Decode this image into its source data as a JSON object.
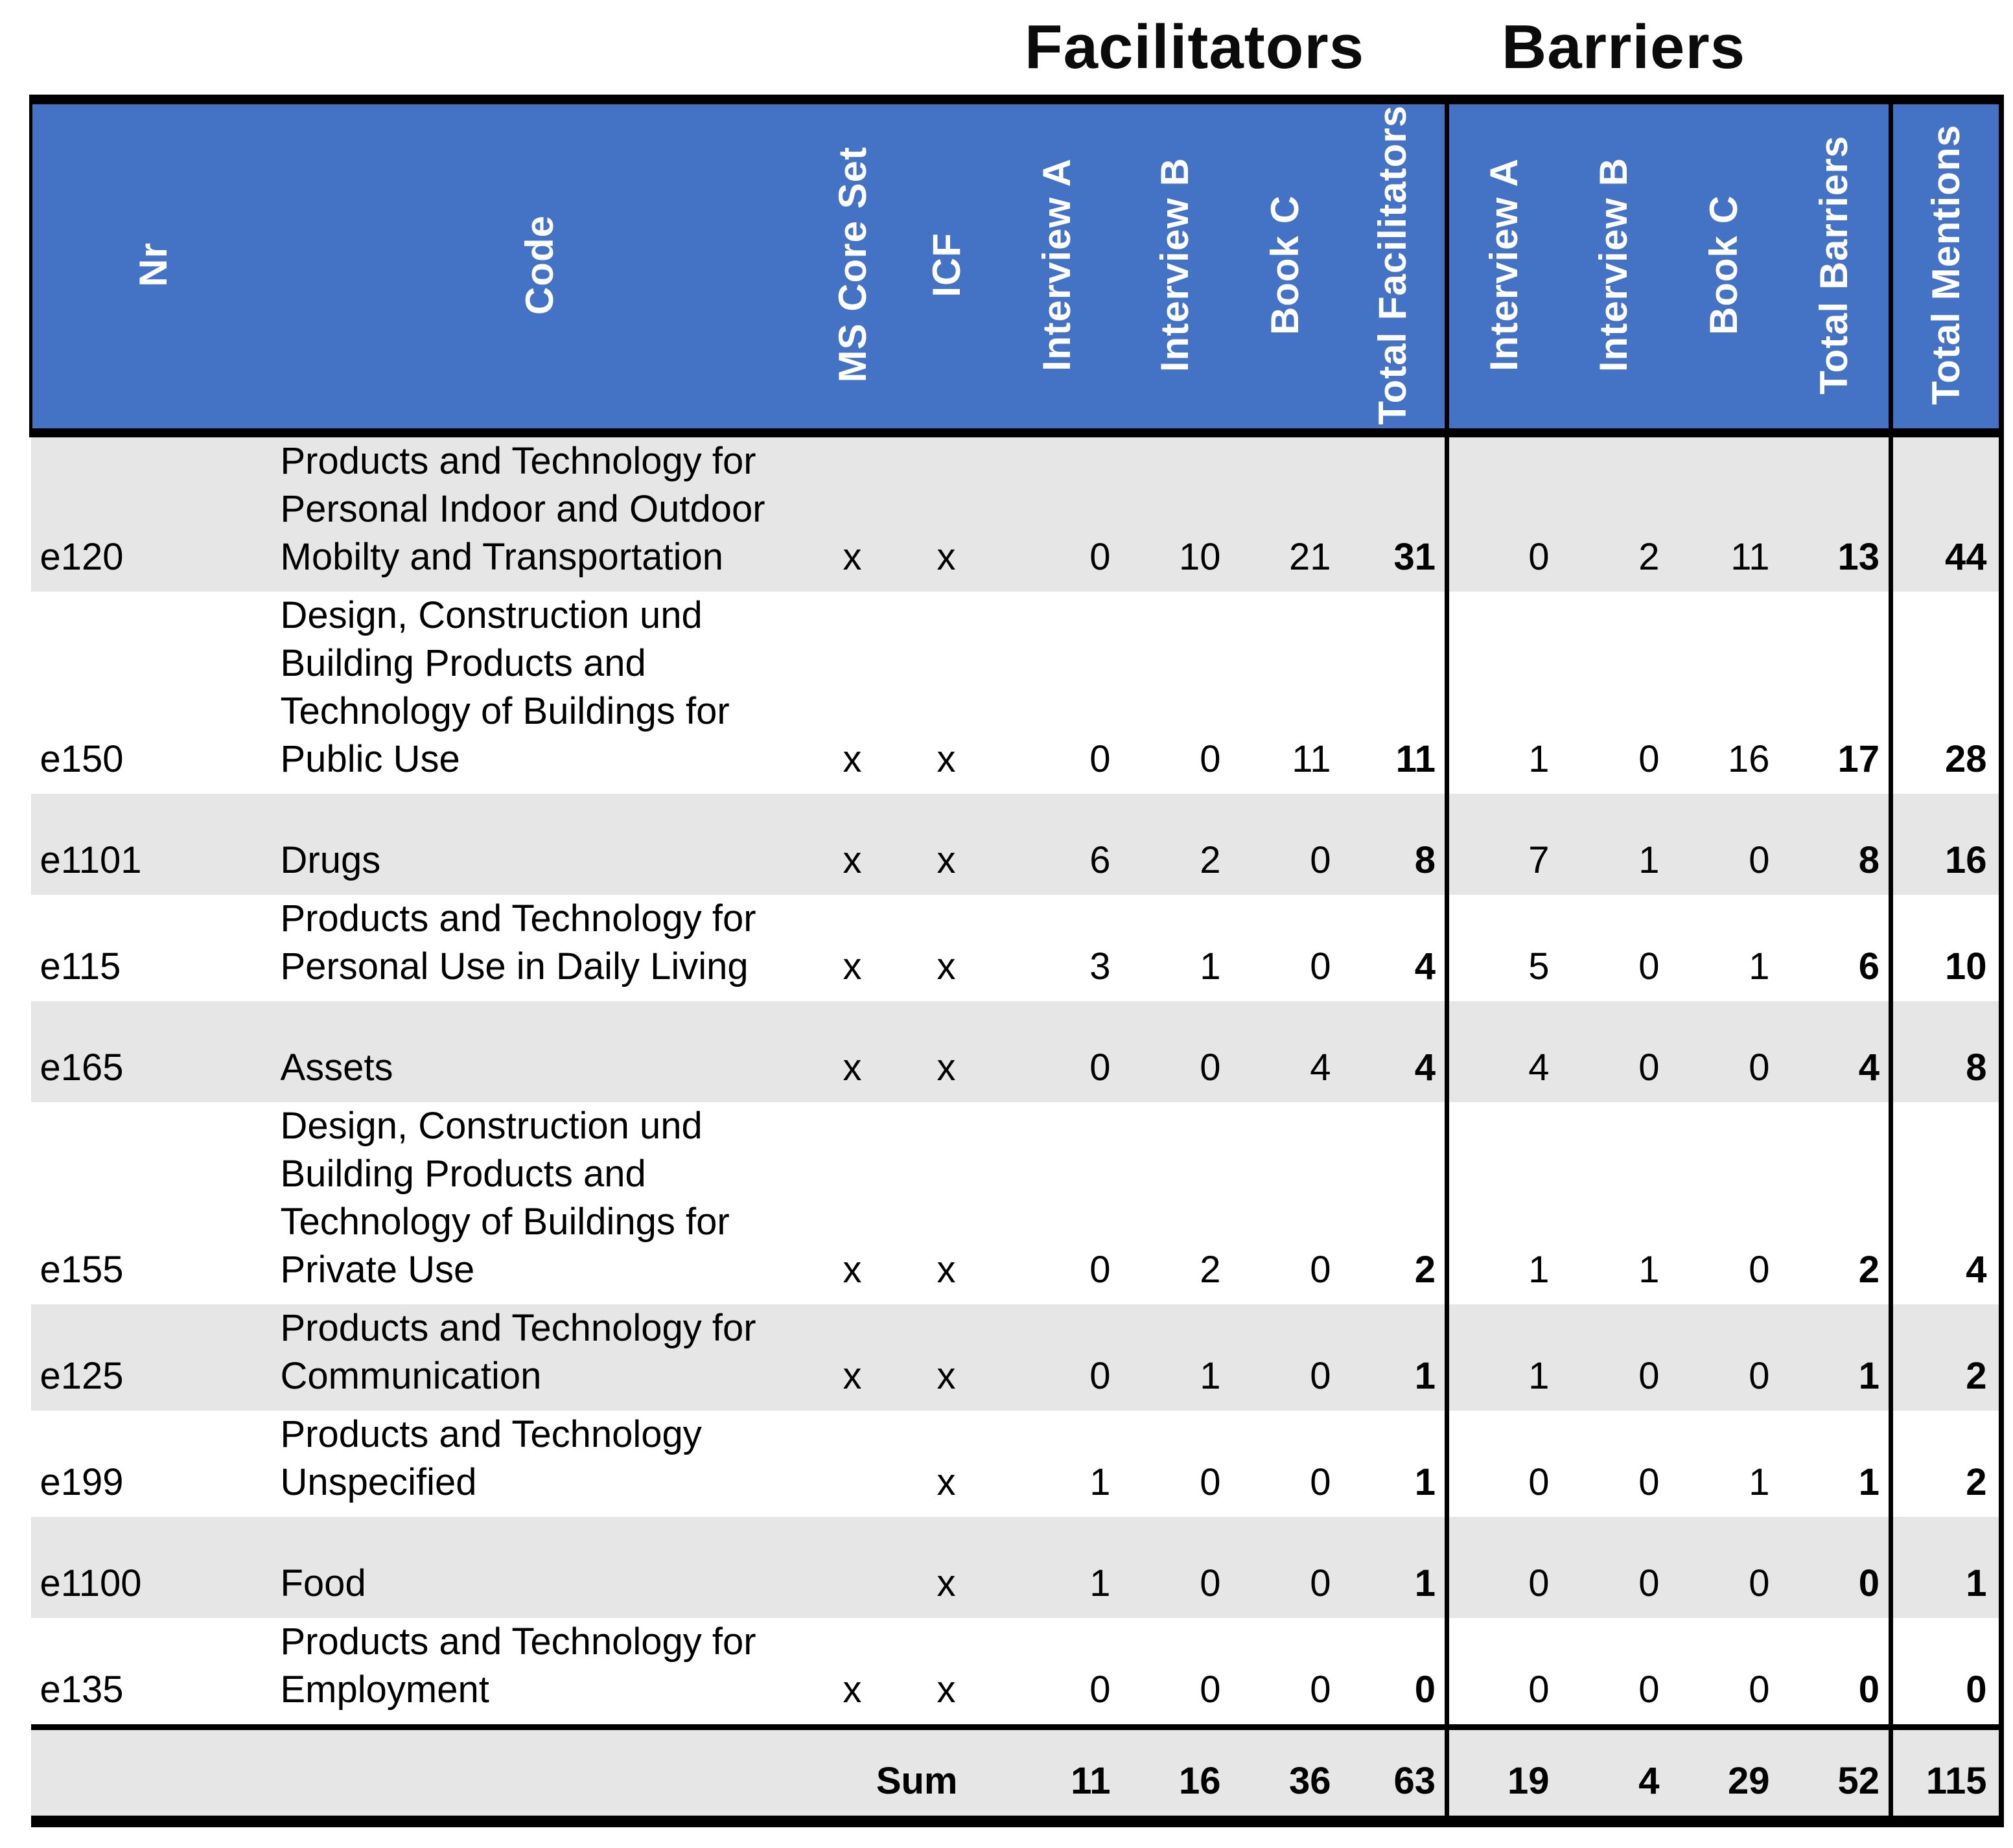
{
  "titles": {
    "facilitators_group": "Facilitators",
    "barriers_group": "Barriers"
  },
  "chart_data": {
    "type": "table",
    "group_headers": [
      "Facilitators",
      "Barriers"
    ],
    "columns": [
      "Nr",
      "Code",
      "MS Core Set",
      "ICF",
      "Interview A",
      "Interview B",
      "Book C",
      "Total Facilitators",
      "Interview A",
      "Interview B",
      "Book C",
      "Total Barriers",
      "Total Mentions"
    ],
    "rows": [
      {
        "nr": "e120",
        "code": "Products and Technology for\nPersonal Indoor and Outdoor\nMobilty and Transportation",
        "ms_core_set": "x",
        "icf": "x",
        "facilitators": {
          "interview_a": 0,
          "interview_b": 10,
          "book_c": 21,
          "total": 31
        },
        "barriers": {
          "interview_a": 0,
          "interview_b": 2,
          "book_c": 11,
          "total": 13
        },
        "total_mentions": 44
      },
      {
        "nr": "e150",
        "code": "Design, Construction und\nBuilding Products and\nTechnology of Buildings for\nPublic Use",
        "ms_core_set": "x",
        "icf": "x",
        "facilitators": {
          "interview_a": 0,
          "interview_b": 0,
          "book_c": 11,
          "total": 11
        },
        "barriers": {
          "interview_a": 1,
          "interview_b": 0,
          "book_c": 16,
          "total": 17
        },
        "total_mentions": 28
      },
      {
        "nr": "e1101",
        "code": "Drugs",
        "ms_core_set": "x",
        "icf": "x",
        "facilitators": {
          "interview_a": 6,
          "interview_b": 2,
          "book_c": 0,
          "total": 8
        },
        "barriers": {
          "interview_a": 7,
          "interview_b": 1,
          "book_c": 0,
          "total": 8
        },
        "total_mentions": 16
      },
      {
        "nr": "e115",
        "code": "Products and Technology for\nPersonal Use in Daily Living",
        "ms_core_set": "x",
        "icf": "x",
        "facilitators": {
          "interview_a": 3,
          "interview_b": 1,
          "book_c": 0,
          "total": 4
        },
        "barriers": {
          "interview_a": 5,
          "interview_b": 0,
          "book_c": 1,
          "total": 6
        },
        "total_mentions": 10
      },
      {
        "nr": "e165",
        "code": "Assets",
        "ms_core_set": "x",
        "icf": "x",
        "facilitators": {
          "interview_a": 0,
          "interview_b": 0,
          "book_c": 4,
          "total": 4
        },
        "barriers": {
          "interview_a": 4,
          "interview_b": 0,
          "book_c": 0,
          "total": 4
        },
        "total_mentions": 8
      },
      {
        "nr": "e155",
        "code": "Design, Construction und\nBuilding Products and\nTechnology of Buildings for\nPrivate Use",
        "ms_core_set": "x",
        "icf": "x",
        "facilitators": {
          "interview_a": 0,
          "interview_b": 2,
          "book_c": 0,
          "total": 2
        },
        "barriers": {
          "interview_a": 1,
          "interview_b": 1,
          "book_c": 0,
          "total": 2
        },
        "total_mentions": 4
      },
      {
        "nr": "e125",
        "code": "Products and Technology for\nCommunication",
        "ms_core_set": "x",
        "icf": "x",
        "facilitators": {
          "interview_a": 0,
          "interview_b": 1,
          "book_c": 0,
          "total": 1
        },
        "barriers": {
          "interview_a": 1,
          "interview_b": 0,
          "book_c": 0,
          "total": 1
        },
        "total_mentions": 2
      },
      {
        "nr": "e199",
        "code": "Products and Technology\nUnspecified",
        "ms_core_set": "",
        "icf": "x",
        "facilitators": {
          "interview_a": 1,
          "interview_b": 0,
          "book_c": 0,
          "total": 1
        },
        "barriers": {
          "interview_a": 0,
          "interview_b": 0,
          "book_c": 1,
          "total": 1
        },
        "total_mentions": 2
      },
      {
        "nr": "e1100",
        "code": "Food",
        "ms_core_set": "",
        "icf": "x",
        "facilitators": {
          "interview_a": 1,
          "interview_b": 0,
          "book_c": 0,
          "total": 1
        },
        "barriers": {
          "interview_a": 0,
          "interview_b": 0,
          "book_c": 0,
          "total": 0
        },
        "total_mentions": 1
      },
      {
        "nr": "e135",
        "code": "Products and Technology for\nEmployment",
        "ms_core_set": "x",
        "icf": "x",
        "facilitators": {
          "interview_a": 0,
          "interview_b": 0,
          "book_c": 0,
          "total": 0
        },
        "barriers": {
          "interview_a": 0,
          "interview_b": 0,
          "book_c": 0,
          "total": 0
        },
        "total_mentions": 0
      }
    ],
    "sum_row": {
      "label": "Sum",
      "facilitators": {
        "interview_a": 11,
        "interview_b": 16,
        "book_c": 36,
        "total": 63
      },
      "barriers": {
        "interview_a": 19,
        "interview_b": 4,
        "book_c": 29,
        "total": 52
      },
      "total_mentions": 115
    }
  },
  "colors": {
    "header_bg": "#4472C4",
    "header_text": "#FFFFFF",
    "row_stripe": "#E7E6E6",
    "border": "#000000"
  }
}
